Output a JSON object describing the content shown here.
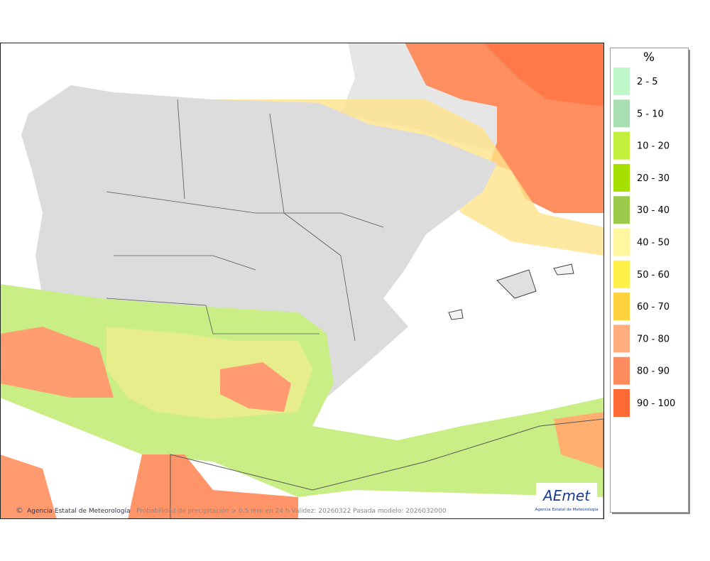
{
  "legend": {
    "title": "%",
    "items": [
      {
        "label": "2 - 5",
        "color": "#bff7c9"
      },
      {
        "label": "5 - 10",
        "color": "#a9ddb2"
      },
      {
        "label": "10 - 20",
        "color": "#c3f03c"
      },
      {
        "label": "20 - 30",
        "color": "#a6e000"
      },
      {
        "label": "30 - 40",
        "color": "#9acb4a"
      },
      {
        "label": "40 - 50",
        "color": "#fff7a0"
      },
      {
        "label": "50 - 60",
        "color": "#fff04a"
      },
      {
        "label": "60 - 70",
        "color": "#ffd23e"
      },
      {
        "label": "70 - 80",
        "color": "#ffad7c"
      },
      {
        "label": "80 - 90",
        "color": "#ff8c5e"
      },
      {
        "label": "90 - 100",
        "color": "#ff6a34"
      }
    ]
  },
  "footer": {
    "credit": "Agencia Estatal de Meteorología",
    "caption": "Probabilidad de precipitación > 0.5 mm en 24 h Validez: 20260322 Pasada modelo: 2026032000"
  },
  "logo": {
    "name": "AEmet",
    "subtitle": "Agencia Estatal de Meteorología"
  }
}
